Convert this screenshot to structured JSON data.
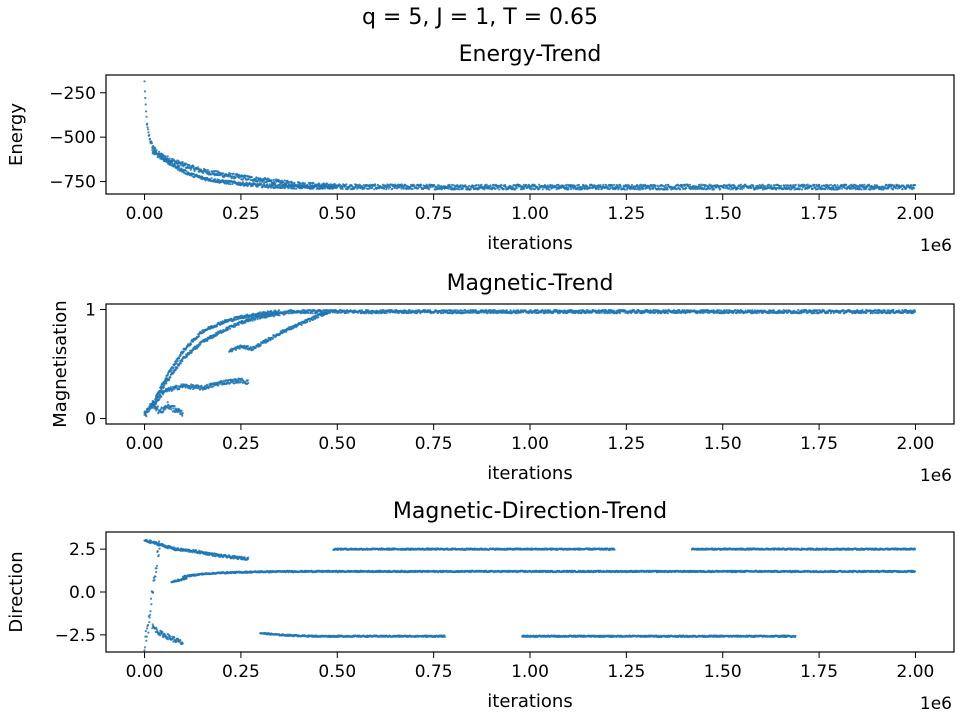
{
  "figure": {
    "suptitle": "q = 5, J = 1, T = 0.65",
    "marker_color": "#1f77b4"
  },
  "chart_data": [
    {
      "type": "scatter",
      "title": "Energy-Trend",
      "xlabel": "iterations",
      "ylabel": "Energy",
      "x_offset_label": "1e6",
      "xlim": [
        -0.1,
        2.1
      ],
      "ylim": [
        -820,
        -150
      ],
      "x_ticks": [
        0.0,
        0.25,
        0.5,
        0.75,
        1.0,
        1.25,
        1.5,
        1.75,
        2.0
      ],
      "x_tick_labels": [
        "0.00",
        "0.25",
        "0.50",
        "0.75",
        "1.00",
        "1.25",
        "1.50",
        "1.75",
        "2.00"
      ],
      "y_ticks": [
        -250,
        -500,
        -750
      ],
      "y_tick_labels": [
        "−250",
        "−500",
        "−750"
      ],
      "series": [
        {
          "x": [
            0.0,
            0.003,
            0.006,
            0.01,
            0.015,
            0.02,
            0.03,
            0.04,
            0.06,
            0.08,
            0.1,
            0.12,
            0.15,
            0.2,
            0.25,
            0.3,
            0.35,
            0.4,
            0.45,
            0.5,
            0.6,
            0.7,
            0.8,
            0.9,
            1.0,
            1.1,
            1.2,
            1.3,
            1.4,
            1.5,
            1.6,
            1.7,
            1.8,
            1.9,
            2.0
          ],
          "y": [
            -190,
            -330,
            -420,
            -480,
            -520,
            -550,
            -580,
            -600,
            -620,
            -640,
            -655,
            -670,
            -690,
            -710,
            -725,
            -740,
            -755,
            -765,
            -772,
            -778,
            -780,
            -780,
            -781,
            -781,
            -781,
            -781,
            -781,
            -781,
            -781,
            -781,
            -781,
            -781,
            -781,
            -781,
            -781
          ],
          "spread": 14
        },
        {
          "x": [
            0.02,
            0.04,
            0.06,
            0.08,
            0.1,
            0.12,
            0.15,
            0.2,
            0.25,
            0.3,
            0.35,
            0.4,
            0.45,
            0.5
          ],
          "y": [
            -580,
            -610,
            -640,
            -665,
            -690,
            -710,
            -730,
            -750,
            -762,
            -772,
            -778,
            -781,
            -781,
            -781
          ],
          "spread": 10
        }
      ]
    },
    {
      "type": "scatter",
      "title": "Magnetic-Trend",
      "xlabel": "iterations",
      "ylabel": "Magnetisation",
      "x_offset_label": "1e6",
      "xlim": [
        -0.1,
        2.1
      ],
      "ylim": [
        -0.05,
        1.05
      ],
      "x_ticks": [
        0.0,
        0.25,
        0.5,
        0.75,
        1.0,
        1.25,
        1.5,
        1.75,
        2.0
      ],
      "x_tick_labels": [
        "0.00",
        "0.25",
        "0.50",
        "0.75",
        "1.00",
        "1.25",
        "1.50",
        "1.75",
        "2.00"
      ],
      "y_ticks": [
        1,
        0
      ],
      "y_tick_labels": [
        "1",
        "0"
      ],
      "series": [
        {
          "x": [
            0.0,
            0.02,
            0.05,
            0.08,
            0.1,
            0.15,
            0.2,
            0.25,
            0.3,
            0.35,
            0.38,
            0.45,
            0.5,
            0.6,
            0.7,
            0.8,
            0.9,
            1.0,
            1.1,
            1.2,
            1.3,
            1.4,
            1.5,
            1.6,
            1.7,
            1.8,
            1.9,
            2.0
          ],
          "y": [
            0.05,
            0.12,
            0.3,
            0.45,
            0.55,
            0.7,
            0.8,
            0.88,
            0.93,
            0.96,
            0.98,
            0.98,
            0.98,
            0.98,
            0.98,
            0.98,
            0.98,
            0.98,
            0.98,
            0.98,
            0.98,
            0.98,
            0.98,
            0.98,
            0.98,
            0.98,
            0.98,
            0.98
          ],
          "spread": 0.015
        },
        {
          "x": [
            0.03,
            0.06,
            0.1,
            0.15,
            0.2,
            0.25,
            0.3,
            0.35
          ],
          "y": [
            0.2,
            0.4,
            0.62,
            0.8,
            0.88,
            0.93,
            0.96,
            0.98
          ],
          "spread": 0.015
        },
        {
          "x": [
            0.02,
            0.05,
            0.1,
            0.15,
            0.2,
            0.25,
            0.27
          ],
          "y": [
            0.1,
            0.25,
            0.3,
            0.28,
            0.33,
            0.35,
            0.33
          ],
          "spread": 0.02
        },
        {
          "x": [
            0.22,
            0.25,
            0.28,
            0.32,
            0.36,
            0.4,
            0.45,
            0.48
          ],
          "y": [
            0.62,
            0.66,
            0.64,
            0.72,
            0.8,
            0.86,
            0.94,
            0.98
          ],
          "spread": 0.015
        },
        {
          "x": [
            0.0,
            0.01,
            0.02,
            0.04,
            0.06,
            0.08,
            0.1
          ],
          "y": [
            0.02,
            0.08,
            0.15,
            0.06,
            0.12,
            0.08,
            0.05
          ],
          "spread": 0.03
        }
      ]
    },
    {
      "type": "scatter",
      "title": "Magnetic-Direction-Trend",
      "xlabel": "iterations",
      "ylabel": "Direction",
      "x_offset_label": "1e6",
      "xlim": [
        -0.1,
        2.1
      ],
      "ylim": [
        -3.5,
        3.5
      ],
      "x_ticks": [
        0.0,
        0.25,
        0.5,
        0.75,
        1.0,
        1.25,
        1.5,
        1.75,
        2.0
      ],
      "x_tick_labels": [
        "0.00",
        "0.25",
        "0.50",
        "0.75",
        "1.00",
        "1.25",
        "1.50",
        "1.75",
        "2.00"
      ],
      "y_ticks": [
        2.5,
        0.0,
        -2.5
      ],
      "y_tick_labels": [
        "2.5",
        "0.0",
        "−2.5"
      ],
      "series": [
        {
          "x": [
            0.1,
            0.15,
            0.2,
            0.3,
            0.4,
            0.5,
            0.6,
            0.7,
            0.8,
            0.9,
            1.0,
            1.1,
            1.2,
            1.3,
            1.4,
            1.5,
            1.6,
            1.7,
            1.8,
            1.9,
            2.0
          ],
          "y": [
            0.9,
            1.05,
            1.12,
            1.18,
            1.2,
            1.2,
            1.2,
            1.2,
            1.2,
            1.2,
            1.2,
            1.2,
            1.2,
            1.2,
            1.2,
            1.2,
            1.2,
            1.2,
            1.2,
            1.2,
            1.2
          ],
          "spread": 0.04
        },
        {
          "x": [
            0.07,
            0.09,
            0.11
          ],
          "y": [
            0.6,
            0.7,
            0.8
          ],
          "spread": 0.05
        },
        {
          "x": [
            0.49,
            0.6,
            0.7,
            0.8,
            0.9,
            1.0,
            1.1,
            1.14,
            1.18,
            1.22
          ],
          "y": [
            2.5,
            2.5,
            2.5,
            2.5,
            2.5,
            2.5,
            2.5,
            2.5,
            2.5,
            2.5
          ],
          "spread": 0.04
        },
        {
          "x": [
            1.42,
            1.5,
            1.6,
            1.7,
            1.8,
            1.9,
            2.0
          ],
          "y": [
            2.5,
            2.5,
            2.5,
            2.5,
            2.5,
            2.5,
            2.5
          ],
          "spread": 0.04
        },
        {
          "x": [
            0.0,
            0.02,
            0.05,
            0.08,
            0.12,
            0.15,
            0.2,
            0.24,
            0.27
          ],
          "y": [
            3.0,
            2.9,
            2.7,
            2.5,
            2.4,
            2.3,
            2.1,
            2.0,
            1.95
          ],
          "spread": 0.08
        },
        {
          "x": [
            0.0,
            0.01,
            0.02,
            0.03,
            0.04
          ],
          "y": [
            -3.0,
            -2.0,
            0.0,
            1.5,
            3.0
          ],
          "spread": 0.4
        },
        {
          "x": [
            0.3,
            0.35,
            0.4,
            0.45,
            0.5,
            0.55,
            0.6,
            0.65,
            0.7,
            0.75,
            0.78
          ],
          "y": [
            -2.4,
            -2.5,
            -2.55,
            -2.58,
            -2.58,
            -2.58,
            -2.58,
            -2.58,
            -2.58,
            -2.58,
            -2.58
          ],
          "spread": 0.04
        },
        {
          "x": [
            0.98,
            1.05,
            1.1,
            1.2,
            1.3,
            1.4,
            1.5,
            1.6,
            1.69
          ],
          "y": [
            -2.58,
            -2.58,
            -2.58,
            -2.58,
            -2.58,
            -2.58,
            -2.58,
            -2.58,
            -2.58
          ],
          "spread": 0.04
        },
        {
          "x": [
            0.02,
            0.04,
            0.06,
            0.08,
            0.1
          ],
          "y": [
            -2.0,
            -2.4,
            -2.6,
            -2.8,
            -3.0
          ],
          "spread": 0.15
        }
      ]
    }
  ]
}
